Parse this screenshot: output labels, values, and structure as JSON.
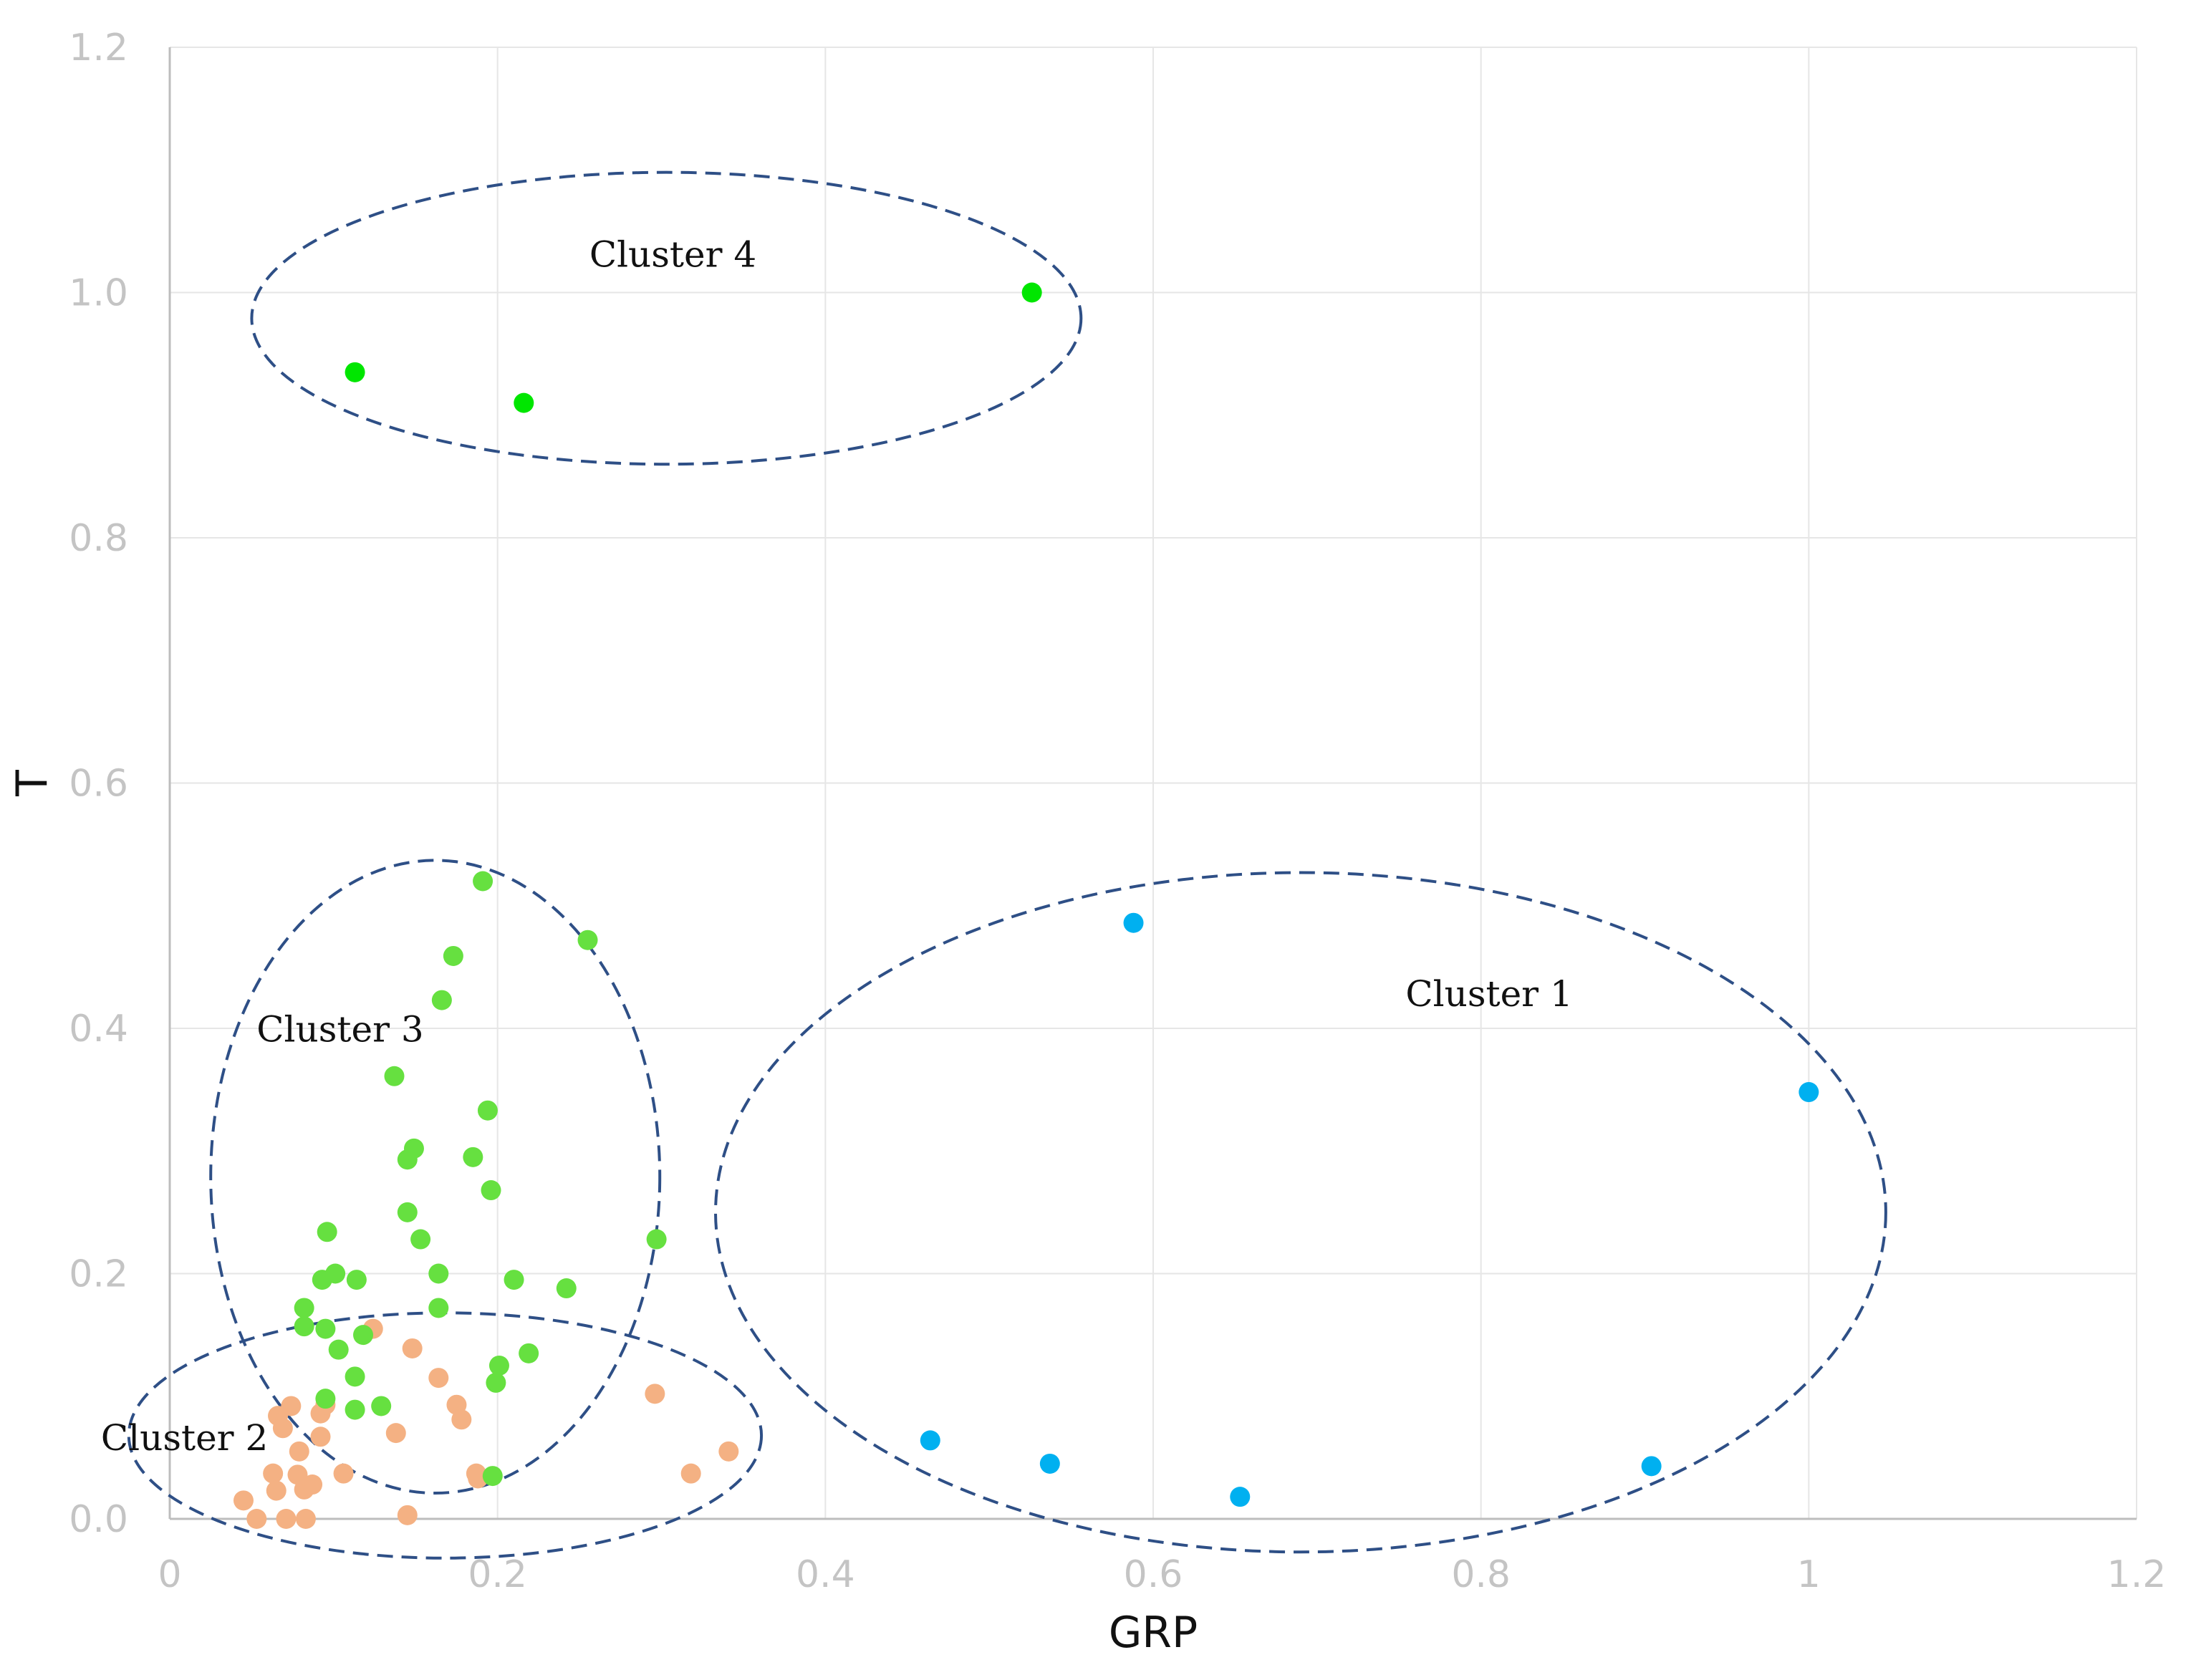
{
  "chart_data": {
    "type": "scatter",
    "title": "",
    "xlabel": "GRP",
    "ylabel": "T",
    "xlim": [
      0,
      1.2
    ],
    "ylim": [
      0,
      1.2
    ],
    "x_ticks": [
      "0",
      "0.2",
      "0.4",
      "0.6",
      "0.8",
      "1",
      "1.2"
    ],
    "y_ticks": [
      "0.0",
      "0.2",
      "0.4",
      "0.6",
      "0.8",
      "1.0",
      "1.2"
    ],
    "grid": true,
    "series": [
      {
        "name": "Cluster 1",
        "color": "#00b0f0",
        "points": [
          [
            0.588,
            0.486
          ],
          [
            1.0,
            0.348
          ],
          [
            0.464,
            0.064
          ],
          [
            0.537,
            0.045
          ],
          [
            0.653,
            0.018
          ],
          [
            0.904,
            0.043
          ]
        ]
      },
      {
        "name": "Cluster 2",
        "color": "#f4b183",
        "points": [
          [
            0.045,
            0.015
          ],
          [
            0.053,
            0.0
          ],
          [
            0.063,
            0.037
          ],
          [
            0.065,
            0.023
          ],
          [
            0.066,
            0.084
          ],
          [
            0.069,
            0.074
          ],
          [
            0.071,
            0.0
          ],
          [
            0.074,
            0.092
          ],
          [
            0.078,
            0.036
          ],
          [
            0.079,
            0.055
          ],
          [
            0.082,
            0.024
          ],
          [
            0.083,
            0.0
          ],
          [
            0.087,
            0.028
          ],
          [
            0.092,
            0.086
          ],
          [
            0.092,
            0.067
          ],
          [
            0.095,
            0.093
          ],
          [
            0.106,
            0.037
          ],
          [
            0.124,
            0.155
          ],
          [
            0.138,
            0.07
          ],
          [
            0.145,
            0.003
          ],
          [
            0.148,
            0.139
          ],
          [
            0.164,
            0.115
          ],
          [
            0.175,
            0.093
          ],
          [
            0.178,
            0.081
          ],
          [
            0.187,
            0.037
          ],
          [
            0.188,
            0.033
          ],
          [
            0.296,
            0.102
          ],
          [
            0.318,
            0.037
          ],
          [
            0.341,
            0.055
          ]
        ]
      },
      {
        "name": "Cluster 3",
        "color": "#66e040",
        "points": [
          [
            0.191,
            0.52
          ],
          [
            0.255,
            0.472
          ],
          [
            0.173,
            0.459
          ],
          [
            0.166,
            0.423
          ],
          [
            0.137,
            0.361
          ],
          [
            0.194,
            0.333
          ],
          [
            0.149,
            0.302
          ],
          [
            0.145,
            0.293
          ],
          [
            0.185,
            0.295
          ],
          [
            0.196,
            0.268
          ],
          [
            0.145,
            0.25
          ],
          [
            0.096,
            0.234
          ],
          [
            0.153,
            0.228
          ],
          [
            0.297,
            0.228
          ],
          [
            0.093,
            0.195
          ],
          [
            0.101,
            0.2
          ],
          [
            0.114,
            0.195
          ],
          [
            0.164,
            0.2
          ],
          [
            0.21,
            0.195
          ],
          [
            0.242,
            0.188
          ],
          [
            0.082,
            0.172
          ],
          [
            0.164,
            0.172
          ],
          [
            0.082,
            0.157
          ],
          [
            0.095,
            0.155
          ],
          [
            0.118,
            0.15
          ],
          [
            0.103,
            0.138
          ],
          [
            0.201,
            0.125
          ],
          [
            0.219,
            0.135
          ],
          [
            0.113,
            0.116
          ],
          [
            0.199,
            0.111
          ],
          [
            0.095,
            0.098
          ],
          [
            0.113,
            0.089
          ],
          [
            0.129,
            0.092
          ],
          [
            0.197,
            0.035
          ]
        ]
      },
      {
        "name": "Cluster 4",
        "color": "#00e600",
        "points": [
          [
            0.526,
            1.0
          ],
          [
            0.113,
            0.935
          ],
          [
            0.216,
            0.91
          ]
        ]
      }
    ],
    "annotations": [
      {
        "label": "Cluster 1",
        "text_at": [
          0.754,
          0.428
        ],
        "ellipse": {
          "cx": 0.69,
          "cy": 0.25,
          "rx": 0.357,
          "ry": 0.277
        }
      },
      {
        "label": "Cluster 2",
        "text_at": [
          -0.042,
          0.066
        ],
        "ellipse": {
          "cx": 0.168,
          "cy": 0.068,
          "rx": 0.193,
          "ry": 0.1
        }
      },
      {
        "label": "Cluster 3",
        "text_at": [
          0.053,
          0.399
        ],
        "ellipse": {
          "cx": 0.162,
          "cy": 0.279,
          "rx": 0.137,
          "ry": 0.258
        }
      },
      {
        "label": "Cluster 4",
        "text_at": [
          0.256,
          1.031
        ],
        "ellipse": {
          "cx": 0.303,
          "cy": 0.979,
          "rx": 0.253,
          "ry": 0.119
        }
      }
    ]
  }
}
